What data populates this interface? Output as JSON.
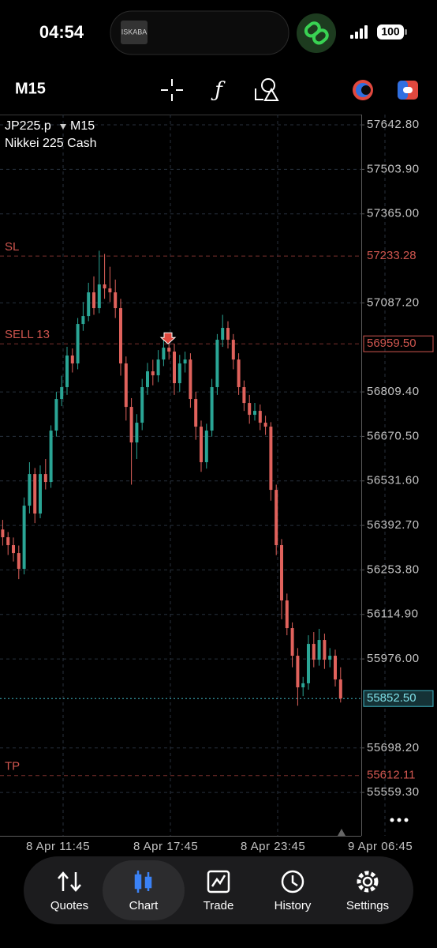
{
  "status_bar": {
    "time": "04:54",
    "logo": "ISKABA",
    "battery": "100"
  },
  "toolbar": {
    "timeframe": "M15"
  },
  "chart_data": {
    "type": "candlestick",
    "symbol": "JP225.p",
    "timeframe": "M15",
    "description": "Nikkei 225 Cash",
    "open": [
      56380.0,
      56355.8,
      56331.2,
      56306.5,
      56257.2,
      56454.4,
      56553.0,
      56429.8,
      56553.0,
      56528.4,
      56688.7,
      56787.3,
      56824.3,
      56922.9,
      56898.2,
      57021.5,
      57046.1,
      57120.1,
      57070.8,
      57144.8,
      57132.4,
      57120.1,
      57070.8,
      56898.2,
      56762.6,
      56651.7,
      56713.3,
      56824.3,
      56873.6,
      56861.2,
      56910.5,
      56947.5,
      56935.2,
      56836.6,
      56898.2,
      56910.5,
      56787.3,
      56701.0,
      56590.0,
      56688.7,
      56824.3,
      56972.2,
      57009.2,
      56972.2,
      56910.5,
      56824.3,
      56774.9,
      56738.0,
      56750.3,
      56713.3,
      56701.0,
      56503.7,
      56331.2,
      56158.6,
      56072.3,
      55986.0,
      55887.4,
      55900.0,
      56023.0,
      55973.7,
      56035.3,
      55973.7,
      55986.0,
      55912.0
    ],
    "high": [
      56410.0,
      56372.0,
      56355.0,
      56330.0,
      56480.0,
      56590.0,
      56572.0,
      56580.0,
      56600.0,
      56705.0,
      56810.0,
      56860.0,
      56950.0,
      56945.0,
      57040.0,
      57090.0,
      57150.0,
      57170.0,
      57250.0,
      57240.0,
      57200.0,
      57160.0,
      57100.0,
      56920.0,
      56790.0,
      56740.0,
      56850.0,
      56900.0,
      56910.0,
      56940.0,
      56980.0,
      56975.0,
      56960.0,
      56925.0,
      56935.0,
      56930.0,
      56810.0,
      56720.0,
      56710.0,
      56850.0,
      56990.0,
      57050.0,
      57030.0,
      56990.0,
      56930.0,
      56845.0,
      56800.0,
      56775.0,
      56770.0,
      56735.0,
      56715.0,
      56520.0,
      56350.0,
      56180.0,
      56090.0,
      56010.0,
      55920.0,
      56050.0,
      56060.0,
      56070.0,
      56055.0,
      56010.0,
      56005.0,
      55950.0
    ],
    "low": [
      56330.0,
      56300.5,
      56280.0,
      56225.0,
      56240.0,
      56430.0,
      56400.0,
      56415.0,
      56505.0,
      56510.0,
      56670.0,
      56765.0,
      56800.0,
      56870.0,
      56880.0,
      57000.0,
      57030.0,
      57050.0,
      57055.0,
      57100.0,
      57090.0,
      57040.0,
      56860.0,
      56720.0,
      56520.0,
      56600.0,
      56690.0,
      56800.0,
      56830.0,
      56840.0,
      56890.0,
      56910.0,
      56800.0,
      56810.0,
      56870.0,
      56760.0,
      56660.0,
      56560.0,
      56570.0,
      56670.0,
      56800.0,
      56950.0,
      56945.0,
      56880.0,
      56800.0,
      56750.0,
      56710.0,
      56720.0,
      56690.0,
      56675.0,
      56470.0,
      56300.0,
      56100.0,
      56050.0,
      55950.0,
      55830.0,
      55860.0,
      55880.0,
      55950.0,
      55955.0,
      55945.0,
      55950.0,
      55890.0,
      55840.0
    ],
    "close": [
      56355.8,
      56331.2,
      56306.5,
      56257.2,
      56454.4,
      56553.0,
      56429.8,
      56553.0,
      56528.4,
      56688.7,
      56787.3,
      56824.3,
      56922.9,
      56898.2,
      57021.5,
      57046.1,
      57120.1,
      57070.8,
      57144.8,
      57132.4,
      57120.1,
      57070.8,
      56898.2,
      56762.6,
      56651.7,
      56713.3,
      56824.3,
      56873.6,
      56861.2,
      56910.5,
      56947.5,
      56935.2,
      56836.6,
      56898.2,
      56910.5,
      56787.3,
      56701.0,
      56590.0,
      56688.7,
      56824.3,
      56972.2,
      57009.2,
      56972.2,
      56910.5,
      56824.3,
      56774.9,
      56738.0,
      56750.3,
      56713.3,
      56701.0,
      56503.7,
      56331.2,
      56158.6,
      56072.3,
      55986.0,
      55887.4,
      55900.0,
      56023.0,
      55973.7,
      56035.3,
      55973.7,
      55986.0,
      55912.0,
      55852.5
    ],
    "up_color": "#2aa595",
    "down_color": "#e0625c",
    "ylim": [
      55424,
      57675
    ],
    "yticks": [
      {
        "value": 57642.8,
        "label": "57642.80"
      },
      {
        "value": 57503.9,
        "label": "57503.90"
      },
      {
        "value": 57365.0,
        "label": "57365.00"
      },
      {
        "value": 57087.2,
        "label": "57087.20"
      },
      {
        "value": 56809.4,
        "label": "56809.40"
      },
      {
        "value": 56670.5,
        "label": "56670.50"
      },
      {
        "value": 56531.6,
        "label": "56531.60"
      },
      {
        "value": 56392.7,
        "label": "56392.70"
      },
      {
        "value": 56253.8,
        "label": "56253.80"
      },
      {
        "value": 56114.9,
        "label": "56114.90"
      },
      {
        "value": 55976.0,
        "label": "55976.00"
      },
      {
        "value": 55698.2,
        "label": "55698.20"
      },
      {
        "value": 55559.3,
        "label": "55559.30"
      }
    ],
    "grid": true,
    "xtick_labels": [
      "8 Apr 11:45",
      "8 Apr 17:45",
      "8 Apr 23:45",
      "9 Apr 06:45"
    ],
    "levels": [
      {
        "name": "SL",
        "value": 57233.28,
        "label": "57233.28"
      },
      {
        "name": "SELL 13",
        "value": 56959.5,
        "label": "56959.50"
      },
      {
        "name": "TP",
        "value": 55612.11,
        "label": "55612.11"
      }
    ],
    "current_price": {
      "value": 55852.5,
      "label": "55852.50"
    }
  },
  "nav": {
    "items": [
      "Quotes",
      "Chart",
      "Trade",
      "History",
      "Settings"
    ],
    "active": 1
  }
}
